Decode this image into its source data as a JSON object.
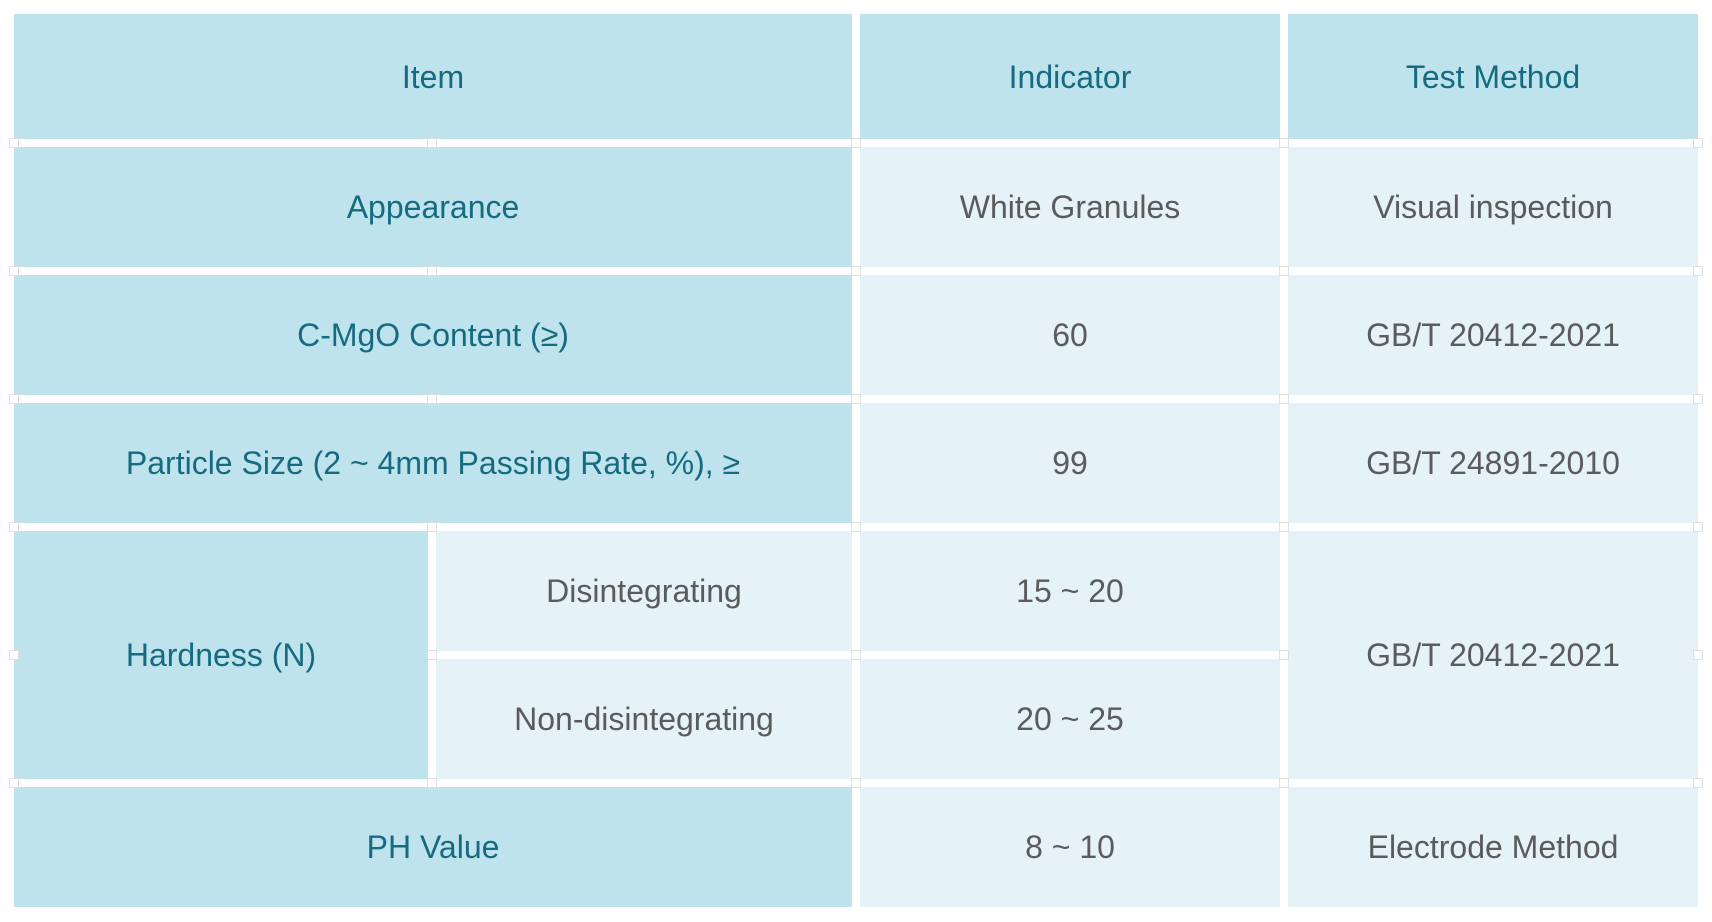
{
  "colors": {
    "page_bg": "#ffffff",
    "item_cell_bg": "#bee3ed",
    "value_cell_bg": "#e5f3f9",
    "item_text": "#166b80",
    "value_text": "#595b5d",
    "grid_dot": "#dedede"
  },
  "table": {
    "header": {
      "item": "Item",
      "indicator": "Indicator",
      "test_method": "Test Method"
    },
    "rows": {
      "appearance": {
        "item": "Appearance",
        "indicator": "White Granules",
        "method": "Visual inspection"
      },
      "cmgo": {
        "item": "C-MgO Content (≥)",
        "indicator": "60",
        "method": "GB/T 20412-2021"
      },
      "particle_size": {
        "item": "Particle Size (2 ~ 4mm Passing Rate, %), ≥",
        "indicator": "99",
        "method": "GB/T 24891-2010"
      },
      "hardness": {
        "item": "Hardness (N)",
        "disintegrating_label": "Disintegrating",
        "disintegrating_indicator": "15 ~ 20",
        "non_disintegrating_label": "Non-disintegrating",
        "non_disintegrating_indicator": "20 ~ 25",
        "method": "GB/T 20412-2021"
      },
      "ph": {
        "item": "PH Value",
        "indicator": "8 ~ 10",
        "method": "Electrode Method"
      }
    }
  }
}
